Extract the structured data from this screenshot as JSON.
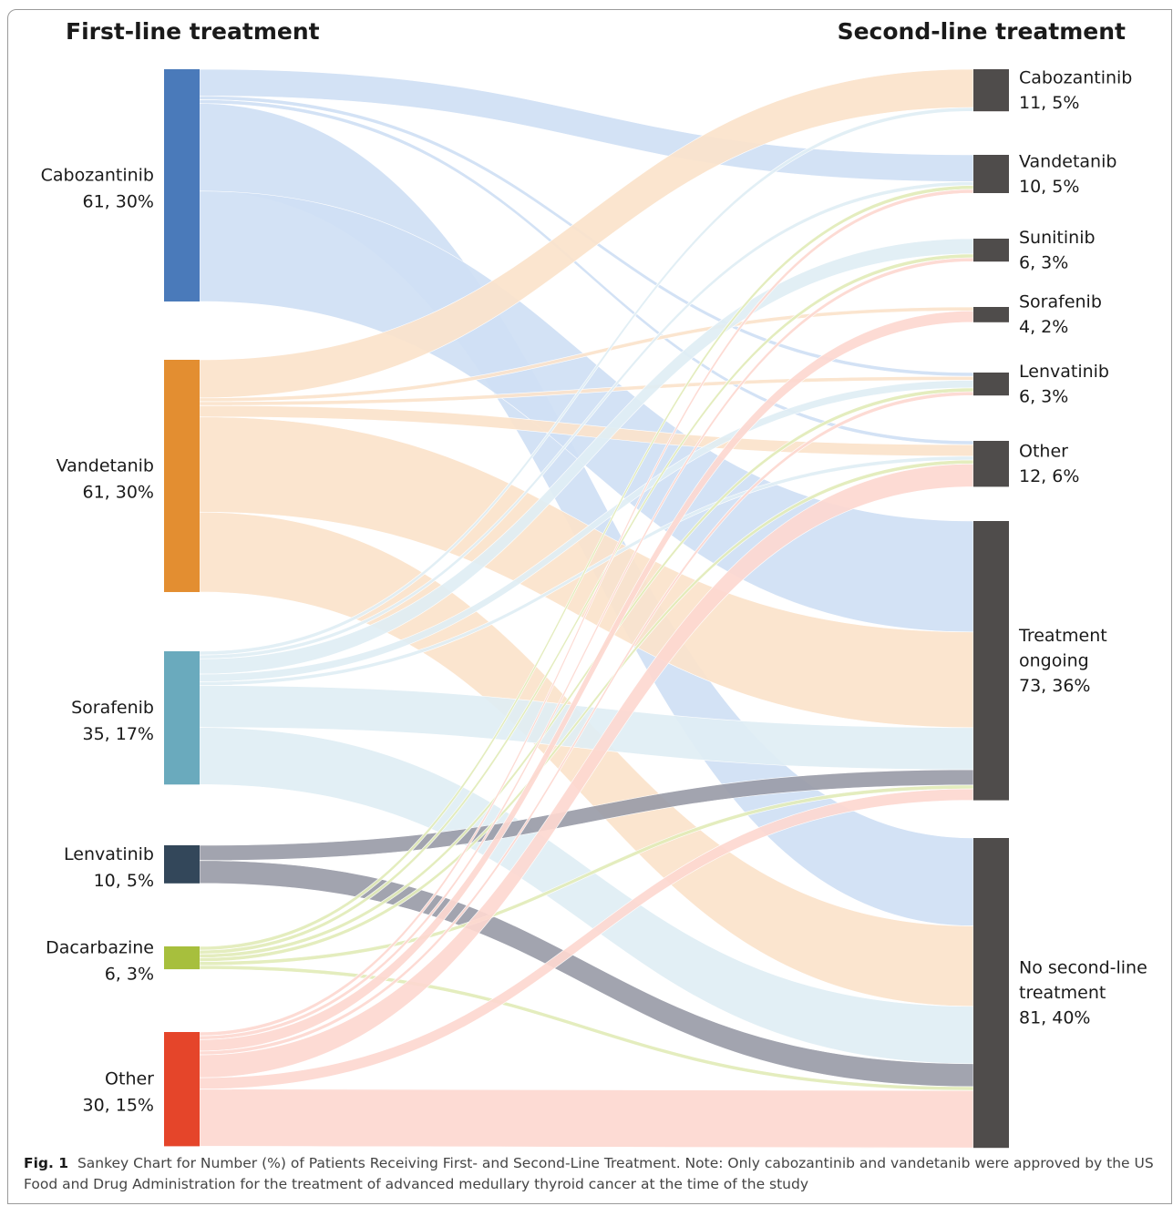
{
  "headers": {
    "left": "First-line treatment",
    "right": "Second-line treatment"
  },
  "caption": {
    "label": "Fig. 1",
    "text": "Sankey Chart for Number (%) of Patients Receiving First- and Second-Line Treatment. Note: Only cabozantinib and vandetanib were approved by the US Food and Drug Administration for the treatment of advanced medullary thyroid cancer at the time of the study"
  },
  "chart_data": {
    "type": "sankey",
    "sources": [
      {
        "name": "Cabozantinib",
        "label": "61, 30%",
        "value": 61,
        "color": "#4a7aba",
        "flow_color": "#cfdff4"
      },
      {
        "name": "Vandetanib",
        "label": "61, 30%",
        "value": 61,
        "color": "#e38e31",
        "flow_color": "#fbe3cb"
      },
      {
        "name": "Sorafenib",
        "label": "35, 17%",
        "value": 35,
        "color": "#6aaabd",
        "flow_color": "#dfeef4"
      },
      {
        "name": "Lenvatinib",
        "label": "10, 5%",
        "value": 10,
        "color": "#33475a",
        "flow_color": "#9a9ca8"
      },
      {
        "name": "Dacarbazine",
        "label": "6, 3%",
        "value": 6,
        "color": "#a7bf3d",
        "flow_color": "#e2ebb9"
      },
      {
        "name": "Other",
        "label": "30, 15%",
        "value": 30,
        "color": "#e5452a",
        "flow_color": "#fdd8d0"
      }
    ],
    "targets": [
      {
        "name": "Cabozantinib",
        "label": "11, 5%",
        "value": 11
      },
      {
        "name": "Vandetanib",
        "label": "10, 5%",
        "value": 10
      },
      {
        "name": "Sunitinib",
        "label": "6, 3%",
        "value": 6
      },
      {
        "name": "Sorafenib",
        "label": "4, 2%",
        "value": 4
      },
      {
        "name": "Lenvatinib",
        "label": "6, 3%",
        "value": 6
      },
      {
        "name": "Other",
        "label": "12, 6%",
        "value": 12
      },
      {
        "name": "Treatment ongoing",
        "label": "73, 36%",
        "value": 73
      },
      {
        "name": "No second-line treatment",
        "label": "81, 40%",
        "value": 81
      }
    ],
    "target_color": "#4f4c4b",
    "links": [
      {
        "source": "Cabozantinib",
        "target": "Vandetanib",
        "value": 7
      },
      {
        "source": "Cabozantinib",
        "target": "Lenvatinib",
        "value": 1
      },
      {
        "source": "Cabozantinib",
        "target": "Other",
        "value": 1
      },
      {
        "source": "Cabozantinib",
        "target": "No second-line treatment",
        "value": 23
      },
      {
        "source": "Cabozantinib",
        "target": "Treatment ongoing",
        "value": 29
      },
      {
        "source": "Vandetanib",
        "target": "Cabozantinib",
        "value": 10
      },
      {
        "source": "Vandetanib",
        "target": "Sorafenib",
        "value": 1
      },
      {
        "source": "Vandetanib",
        "target": "Lenvatinib",
        "value": 1
      },
      {
        "source": "Vandetanib",
        "target": "Other",
        "value": 3
      },
      {
        "source": "Vandetanib",
        "target": "Treatment ongoing",
        "value": 25
      },
      {
        "source": "Vandetanib",
        "target": "No second-line treatment",
        "value": 21
      },
      {
        "source": "Sorafenib",
        "target": "Cabozantinib",
        "value": 1
      },
      {
        "source": "Sorafenib",
        "target": "Vandetanib",
        "value": 1
      },
      {
        "source": "Sorafenib",
        "target": "Sunitinib",
        "value": 4
      },
      {
        "source": "Sorafenib",
        "target": "Lenvatinib",
        "value": 2
      },
      {
        "source": "Sorafenib",
        "target": "Other",
        "value": 1
      },
      {
        "source": "Sorafenib",
        "target": "Treatment ongoing",
        "value": 11
      },
      {
        "source": "Sorafenib",
        "target": "No second-line treatment",
        "value": 15
      },
      {
        "source": "Lenvatinib",
        "target": "Treatment ongoing",
        "value": 4
      },
      {
        "source": "Lenvatinib",
        "target": "No second-line treatment",
        "value": 6
      },
      {
        "source": "Dacarbazine",
        "target": "Vandetanib",
        "value": 1
      },
      {
        "source": "Dacarbazine",
        "target": "Sunitinib",
        "value": 1
      },
      {
        "source": "Dacarbazine",
        "target": "Lenvatinib",
        "value": 1
      },
      {
        "source": "Dacarbazine",
        "target": "Other",
        "value": 1
      },
      {
        "source": "Dacarbazine",
        "target": "Treatment ongoing",
        "value": 1
      },
      {
        "source": "Dacarbazine",
        "target": "No second-line treatment",
        "value": 1
      },
      {
        "source": "Other",
        "target": "Vandetanib",
        "value": 1
      },
      {
        "source": "Other",
        "target": "Sunitinib",
        "value": 1
      },
      {
        "source": "Other",
        "target": "Sorafenib",
        "value": 3
      },
      {
        "source": "Other",
        "target": "Lenvatinib",
        "value": 1
      },
      {
        "source": "Other",
        "target": "Other",
        "value": 6
      },
      {
        "source": "Other",
        "target": "Treatment ongoing",
        "value": 3
      },
      {
        "source": "Other",
        "target": "No second-line treatment",
        "value": 15
      }
    ]
  }
}
